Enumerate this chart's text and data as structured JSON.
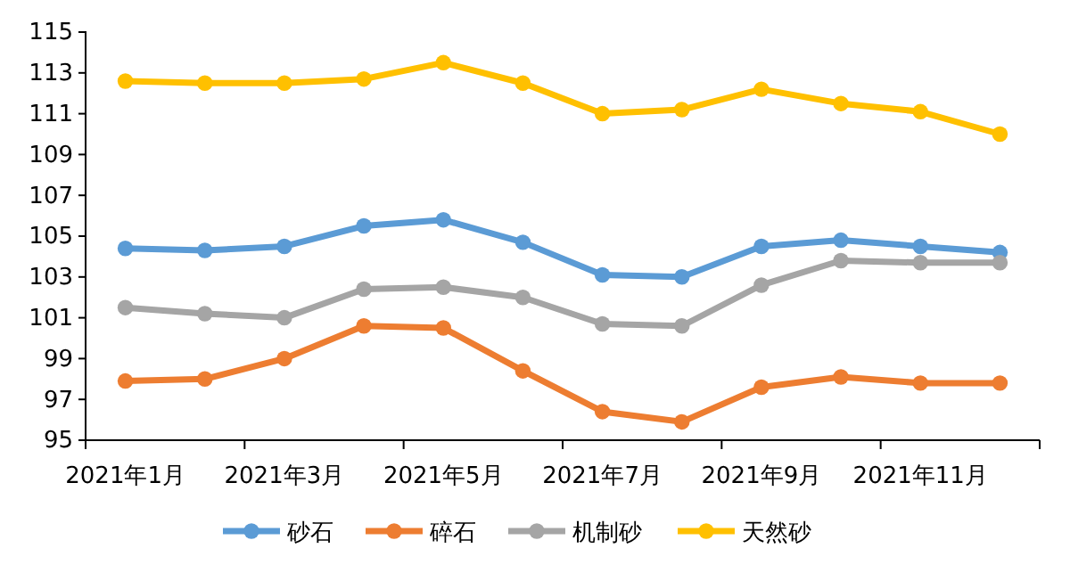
{
  "chart_data": {
    "type": "line",
    "categories": [
      "2021年1月",
      null,
      "2021年3月",
      null,
      "2021年5月",
      null,
      "2021年7月",
      null,
      "2021年9月",
      null,
      "2021年11月",
      null
    ],
    "series": [
      {
        "name": "砂石",
        "color": "#5b9bd5",
        "values": [
          104.4,
          104.3,
          104.5,
          105.5,
          105.8,
          104.7,
          103.1,
          103.0,
          104.5,
          104.8,
          104.5,
          104.2
        ]
      },
      {
        "name": "碎石",
        "color": "#ed7d31",
        "values": [
          97.9,
          98.0,
          99.0,
          100.6,
          100.5,
          98.4,
          96.4,
          95.9,
          97.6,
          98.1,
          97.8,
          97.8
        ]
      },
      {
        "name": "机制砂",
        "color": "#a5a5a5",
        "values": [
          101.5,
          101.2,
          101.0,
          102.4,
          102.5,
          102.0,
          100.7,
          100.6,
          102.6,
          103.8,
          103.7,
          103.7
        ]
      },
      {
        "name": "天然砂",
        "color": "#ffc000",
        "values": [
          112.6,
          112.5,
          112.5,
          112.7,
          113.5,
          112.5,
          111.0,
          111.2,
          112.2,
          111.5,
          111.1,
          110.0
        ]
      }
    ],
    "ylim": [
      95,
      115
    ],
    "yticks": [
      95,
      97,
      99,
      101,
      103,
      105,
      107,
      109,
      111,
      113,
      115
    ],
    "grid": false,
    "legend": "bottom",
    "marker": "circle",
    "line_style": "solid"
  }
}
